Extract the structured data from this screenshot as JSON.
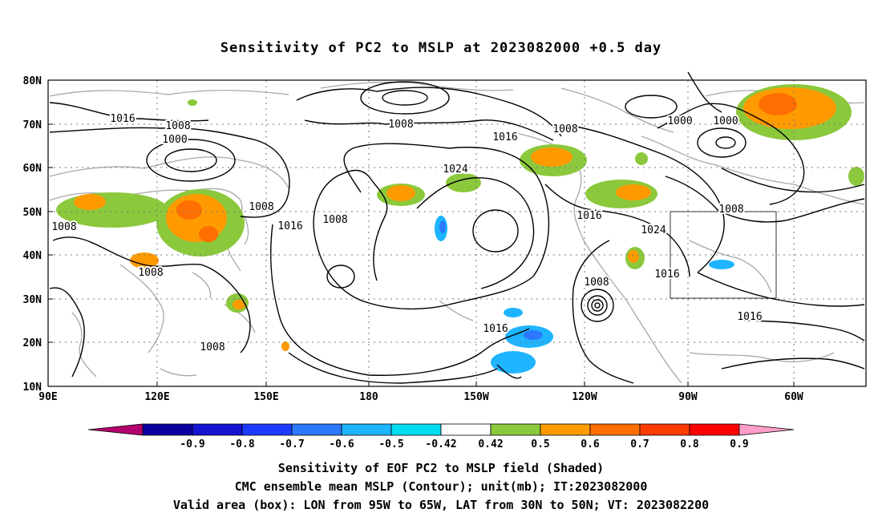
{
  "title": "Sensitivity of PC2 to MSLP at 2023082000 +0.5 day",
  "map": {
    "lat_labels": [
      "80N",
      "70N",
      "60N",
      "50N",
      "40N",
      "30N",
      "20N",
      "10N"
    ],
    "lon_labels": [
      "90E",
      "120E",
      "150E",
      "180",
      "150W",
      "120W",
      "90W",
      "60W"
    ],
    "contour_labels": [
      {
        "text": "1016"
      },
      {
        "text": "1008"
      },
      {
        "text": "1000"
      },
      {
        "text": "1008"
      },
      {
        "text": "1024"
      },
      {
        "text": "1016"
      },
      {
        "text": "1008"
      },
      {
        "text": "1016"
      },
      {
        "text": "1008"
      },
      {
        "text": "1008"
      },
      {
        "text": "1000"
      },
      {
        "text": "1000"
      },
      {
        "text": "1016"
      },
      {
        "text": "1024"
      },
      {
        "text": "1008"
      },
      {
        "text": "1016"
      },
      {
        "text": "1008"
      },
      {
        "text": "1016"
      },
      {
        "text": "1016"
      },
      {
        "text": "1008"
      },
      {
        "text": "1008"
      }
    ],
    "valid_box": {
      "lon_from": "95W",
      "lon_to": "65W",
      "lat_from": "30N",
      "lat_to": "50N"
    }
  },
  "colorbar": {
    "labels": [
      "-0.9",
      "-0.8",
      "-0.7",
      "-0.6",
      "-0.5",
      "-0.42",
      "0.42",
      "0.5",
      "0.6",
      "0.7",
      "0.8",
      "0.9"
    ],
    "colors": [
      "#b4006e",
      "#0a00a0",
      "#1414d2",
      "#1e3cff",
      "#2c78ff",
      "#1eb4ff",
      "#00dcf0",
      "#ffffff",
      "#8cc83c",
      "#ff9b00",
      "#ff6e00",
      "#ff3c00",
      "#ff0000",
      "#ff9ec8"
    ]
  },
  "footer": {
    "line1": "Sensitivity of EOF PC2 to MSLP field (Shaded)",
    "line2": "CMC ensemble mean MSLP (Contour); unit(mb); IT:2023082000",
    "line3": "Valid area (box): LON from 95W to 65W, LAT from 30N to 50N; VT: 2023082200"
  }
}
